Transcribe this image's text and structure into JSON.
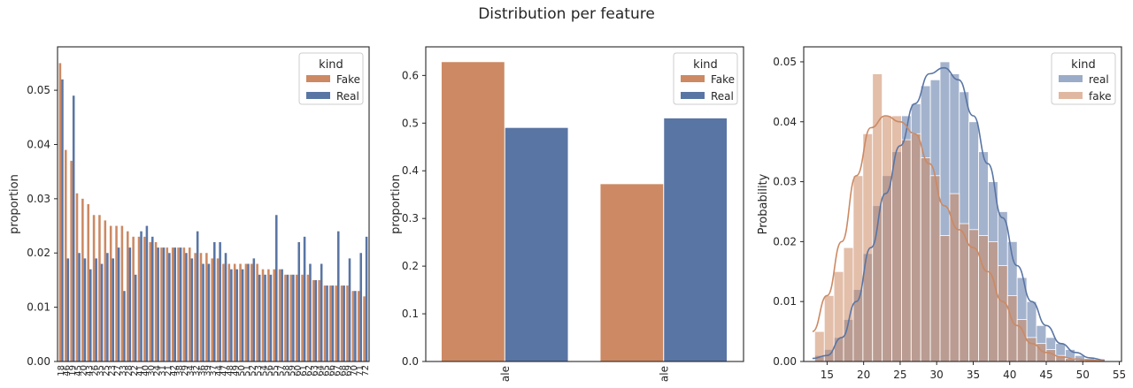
{
  "figure": {
    "title": "Distribution per feature"
  },
  "chart_data": [
    {
      "type": "bar",
      "title": "",
      "xlabel": "",
      "ylabel": "proportion",
      "ylim": [
        0,
        0.058
      ],
      "yticks": [
        0.0,
        0.01,
        0.02,
        0.03,
        0.04,
        0.05
      ],
      "ytick_labels": [
        "0.00",
        "0.01",
        "0.02",
        "0.03",
        "0.04",
        "0.05"
      ],
      "legend": {
        "title": "kind",
        "position": "top-right"
      },
      "categories": [
        "18",
        "46",
        "19",
        "45",
        "20",
        "43",
        "26",
        "35",
        "25",
        "23",
        "27",
        "33",
        "28",
        "22",
        "41",
        "40",
        "30",
        "24",
        "31",
        "21",
        "42",
        "38",
        "29",
        "34",
        "32",
        "36",
        "39",
        "37",
        "44",
        "47",
        "48",
        "49",
        "50",
        "51",
        "52",
        "53",
        "54",
        "56",
        "55",
        "57",
        "58",
        "59",
        "60",
        "61",
        "62",
        "63",
        "64",
        "65",
        "66",
        "67",
        "68",
        "69",
        "70",
        "71",
        "72"
      ],
      "categories_note_visible_subset": true,
      "series": [
        {
          "name": "Fake",
          "color": "#cc8963",
          "values": [
            0.055,
            0.039,
            0.037,
            0.031,
            0.03,
            0.029,
            0.027,
            0.027,
            0.026,
            0.025,
            0.025,
            0.025,
            0.024,
            0.023,
            0.023,
            0.023,
            0.022,
            0.022,
            0.021,
            0.021,
            0.021,
            0.021,
            0.021,
            0.021,
            0.02,
            0.02,
            0.02,
            0.019,
            0.019,
            0.018,
            0.018,
            0.018,
            0.018,
            0.018,
            0.018,
            0.018,
            0.017,
            0.017,
            0.017,
            0.017,
            0.016,
            0.016,
            0.016,
            0.016,
            0.016,
            0.015,
            0.015,
            0.014,
            0.014,
            0.014,
            0.014,
            0.014,
            0.013,
            0.013,
            0.012
          ]
        },
        {
          "name": "Real",
          "color": "#5975a4",
          "values": [
            0.052,
            0.019,
            0.049,
            0.02,
            0.019,
            0.017,
            0.019,
            0.018,
            0.02,
            0.019,
            0.021,
            0.013,
            0.021,
            0.016,
            0.024,
            0.025,
            0.023,
            0.021,
            0.021,
            0.02,
            0.021,
            0.021,
            0.02,
            0.019,
            0.024,
            0.018,
            0.018,
            0.022,
            0.022,
            0.02,
            0.017,
            0.017,
            0.017,
            0.018,
            0.019,
            0.016,
            0.016,
            0.016,
            0.027,
            0.017,
            0.016,
            0.016,
            0.022,
            0.023,
            0.018,
            0.015,
            0.018,
            0.014,
            0.014,
            0.024,
            0.014,
            0.019,
            0.013,
            0.02,
            0.023
          ]
        }
      ]
    },
    {
      "type": "bar",
      "title": "",
      "xlabel": "",
      "ylabel": "proportion",
      "ylim": [
        0,
        0.66
      ],
      "yticks": [
        0.0,
        0.1,
        0.2,
        0.3,
        0.4,
        0.5,
        0.6
      ],
      "ytick_labels": [
        "0.0",
        "0.1",
        "0.2",
        "0.3",
        "0.4",
        "0.5",
        "0.6"
      ],
      "legend": {
        "title": "kind",
        "position": "top-right"
      },
      "categories": [
        "ale",
        "ale"
      ],
      "series": [
        {
          "name": "Fake",
          "color": "#cc8963",
          "values": [
            0.628,
            0.372
          ]
        },
        {
          "name": "Real",
          "color": "#5975a4",
          "values": [
            0.49,
            0.51
          ]
        }
      ]
    },
    {
      "type": "histogram",
      "title": "",
      "xlabel": "",
      "ylabel": "Probability",
      "xlim": [
        11.8,
        55.3
      ],
      "ylim": [
        0,
        0.0525
      ],
      "xticks": [
        15,
        20,
        25,
        30,
        35,
        40,
        45,
        50,
        55
      ],
      "xtick_labels": [
        "15",
        "20",
        "25",
        "30",
        "35",
        "40",
        "45",
        "50",
        "55"
      ],
      "yticks": [
        0.0,
        0.01,
        0.02,
        0.03,
        0.04,
        0.05
      ],
      "ytick_labels": [
        "0.00",
        "0.01",
        "0.02",
        "0.03",
        "0.04",
        "0.05"
      ],
      "legend": {
        "title": "kind",
        "position": "top-right"
      },
      "bin_width": 1.32,
      "bins_start": [
        13.3,
        14.62,
        15.94,
        17.26,
        18.58,
        19.9,
        21.22,
        22.54,
        23.86,
        25.18,
        26.5,
        27.82,
        29.14,
        30.46,
        31.78,
        33.1,
        34.42,
        35.74,
        37.06,
        38.38,
        39.7,
        41.02,
        42.34,
        43.66,
        44.98,
        46.3,
        47.62,
        48.94,
        50.26,
        51.58
      ],
      "series": [
        {
          "name": "real",
          "color": "#5975a4",
          "alpha": 0.55,
          "values": [
            0.001,
            0.002,
            0.004,
            0.007,
            0.012,
            0.018,
            0.026,
            0.031,
            0.035,
            0.041,
            0.043,
            0.046,
            0.047,
            0.05,
            0.048,
            0.045,
            0.04,
            0.035,
            0.03,
            0.025,
            0.02,
            0.014,
            0.01,
            0.006,
            0.004,
            0.003,
            0.002,
            0.001,
            0.0005,
            0.0003
          ],
          "kde_x": [
            13,
            15,
            17,
            19,
            21,
            23,
            25,
            27,
            29,
            31,
            33,
            35,
            37,
            39,
            41,
            43,
            45,
            47,
            49,
            51,
            53
          ],
          "kde_y": [
            0.0005,
            0.001,
            0.004,
            0.01,
            0.019,
            0.028,
            0.036,
            0.043,
            0.048,
            0.049,
            0.047,
            0.041,
            0.033,
            0.024,
            0.016,
            0.01,
            0.006,
            0.003,
            0.0015,
            0.0006,
            0.0002
          ]
        },
        {
          "name": "fake",
          "color": "#cc8963",
          "alpha": 0.55,
          "values": [
            0.005,
            0.011,
            0.015,
            0.019,
            0.031,
            0.038,
            0.048,
            0.041,
            0.041,
            0.037,
            0.038,
            0.034,
            0.031,
            0.021,
            0.028,
            0.023,
            0.022,
            0.021,
            0.02,
            0.016,
            0.011,
            0.007,
            0.004,
            0.003,
            0.002,
            0.001,
            0.0005,
            0.0003,
            0.0002,
            0.0001
          ],
          "kde_x": [
            13,
            15,
            17,
            19,
            21,
            23,
            25,
            27,
            29,
            31,
            33,
            35,
            37,
            39,
            41,
            43,
            45,
            47,
            49,
            51,
            53
          ],
          "kde_y": [
            0.005,
            0.011,
            0.02,
            0.031,
            0.039,
            0.041,
            0.04,
            0.038,
            0.033,
            0.026,
            0.022,
            0.019,
            0.015,
            0.01,
            0.006,
            0.003,
            0.0015,
            0.0008,
            0.0004,
            0.0002,
            0.0001
          ]
        }
      ]
    }
  ]
}
